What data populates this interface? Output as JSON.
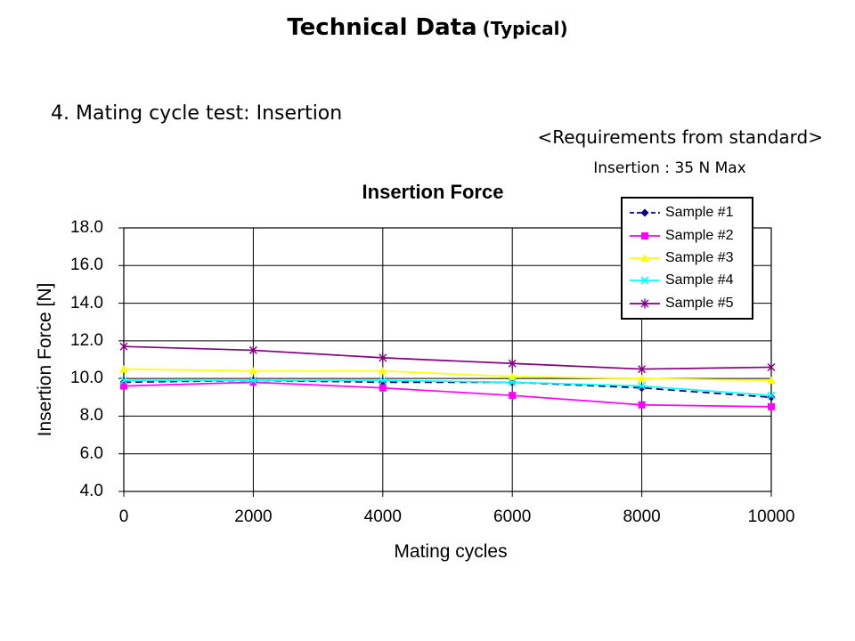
{
  "slide": {
    "title": "Technical Data",
    "title_suffix": "(Typical)",
    "section_heading": "4. Mating cycle test: Insertion",
    "requirements_header": "<Requirements from standard>",
    "requirements_value": "Insertion : 35 N Max"
  },
  "chart_data": {
    "type": "line",
    "title": "Insertion Force",
    "xlabel": "Mating cycles",
    "ylabel": "Insertion Force [N]",
    "x": [
      0,
      2000,
      4000,
      6000,
      8000,
      10000
    ],
    "x_tick_labels": [
      "0",
      "2000",
      "4000",
      "6000",
      "8000",
      "10000"
    ],
    "y_tick_labels": [
      "4.0",
      "6.0",
      "8.0",
      "10.0",
      "12.0",
      "14.0",
      "16.0",
      "18.0"
    ],
    "xlim": [
      0,
      10000
    ],
    "ylim": [
      4.0,
      18.0
    ],
    "grid": true,
    "grid_color": "#000000",
    "legend_position": "top-right",
    "series": [
      {
        "name": "Sample #1",
        "color": "#000080",
        "marker": "diamond",
        "line_style": "dashed",
        "values": [
          9.8,
          9.9,
          9.8,
          9.8,
          9.5,
          9.0
        ]
      },
      {
        "name": "Sample #2",
        "color": "#FF00FF",
        "marker": "square",
        "line_style": "solid",
        "values": [
          9.6,
          9.8,
          9.5,
          9.1,
          8.6,
          8.5
        ]
      },
      {
        "name": "Sample #3",
        "color": "#FFFF00",
        "marker": "triangle",
        "line_style": "solid",
        "values": [
          10.5,
          10.4,
          10.4,
          10.1,
          10.0,
          9.9
        ]
      },
      {
        "name": "Sample #4",
        "color": "#00FFFF",
        "marker": "x",
        "line_style": "solid",
        "values": [
          9.9,
          9.9,
          9.9,
          9.8,
          9.6,
          9.1
        ]
      },
      {
        "name": "Sample #5",
        "color": "#800080",
        "marker": "asterisk",
        "line_style": "solid",
        "values": [
          11.7,
          11.5,
          11.1,
          10.8,
          10.5,
          10.6
        ]
      }
    ]
  }
}
